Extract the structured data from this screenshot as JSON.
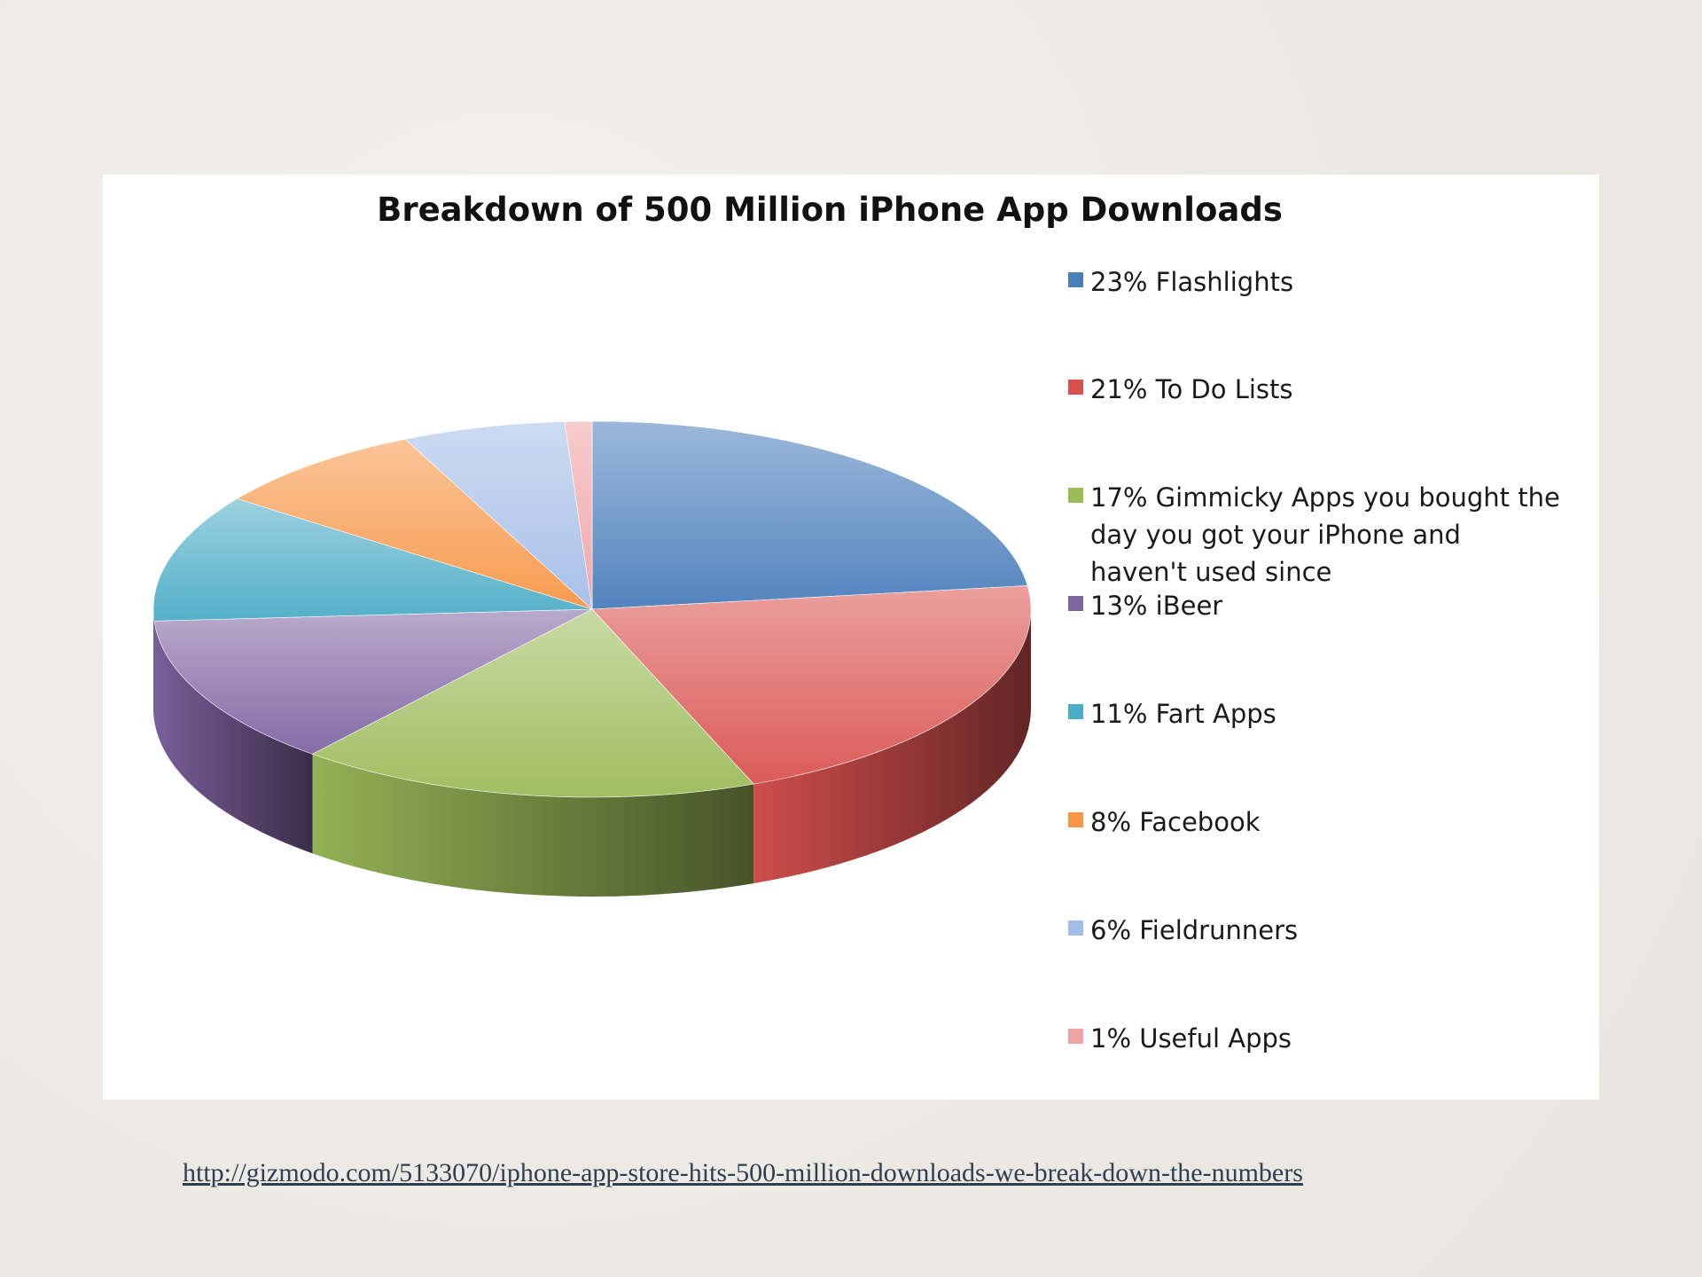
{
  "source_url": "http://gizmodo.com/5133070/iphone-app-store-hits-500-million-downloads-we-break-down-the-numbers",
  "chart_data": {
    "type": "pie",
    "title": "Breakdown of 500 Million iPhone App Downloads",
    "categories": [
      "23% Flashlights",
      "21% To Do Lists",
      "17% Gimmicky Apps you bought the day you got your iPhone and haven't used since",
      "13% iBeer",
      "11% Fart Apps",
      "8% Facebook",
      "6% Fieldrunners",
      "1% Useful Apps"
    ],
    "values": [
      23,
      21,
      17,
      13,
      11,
      8,
      6,
      1
    ],
    "colors": [
      "#4a7ebb",
      "#d9524f",
      "#9bbb59",
      "#8064a2",
      "#4bacc6",
      "#f79646",
      "#a4bde8",
      "#f0a3a3"
    ],
    "legend_position": "right",
    "style": "3d"
  }
}
